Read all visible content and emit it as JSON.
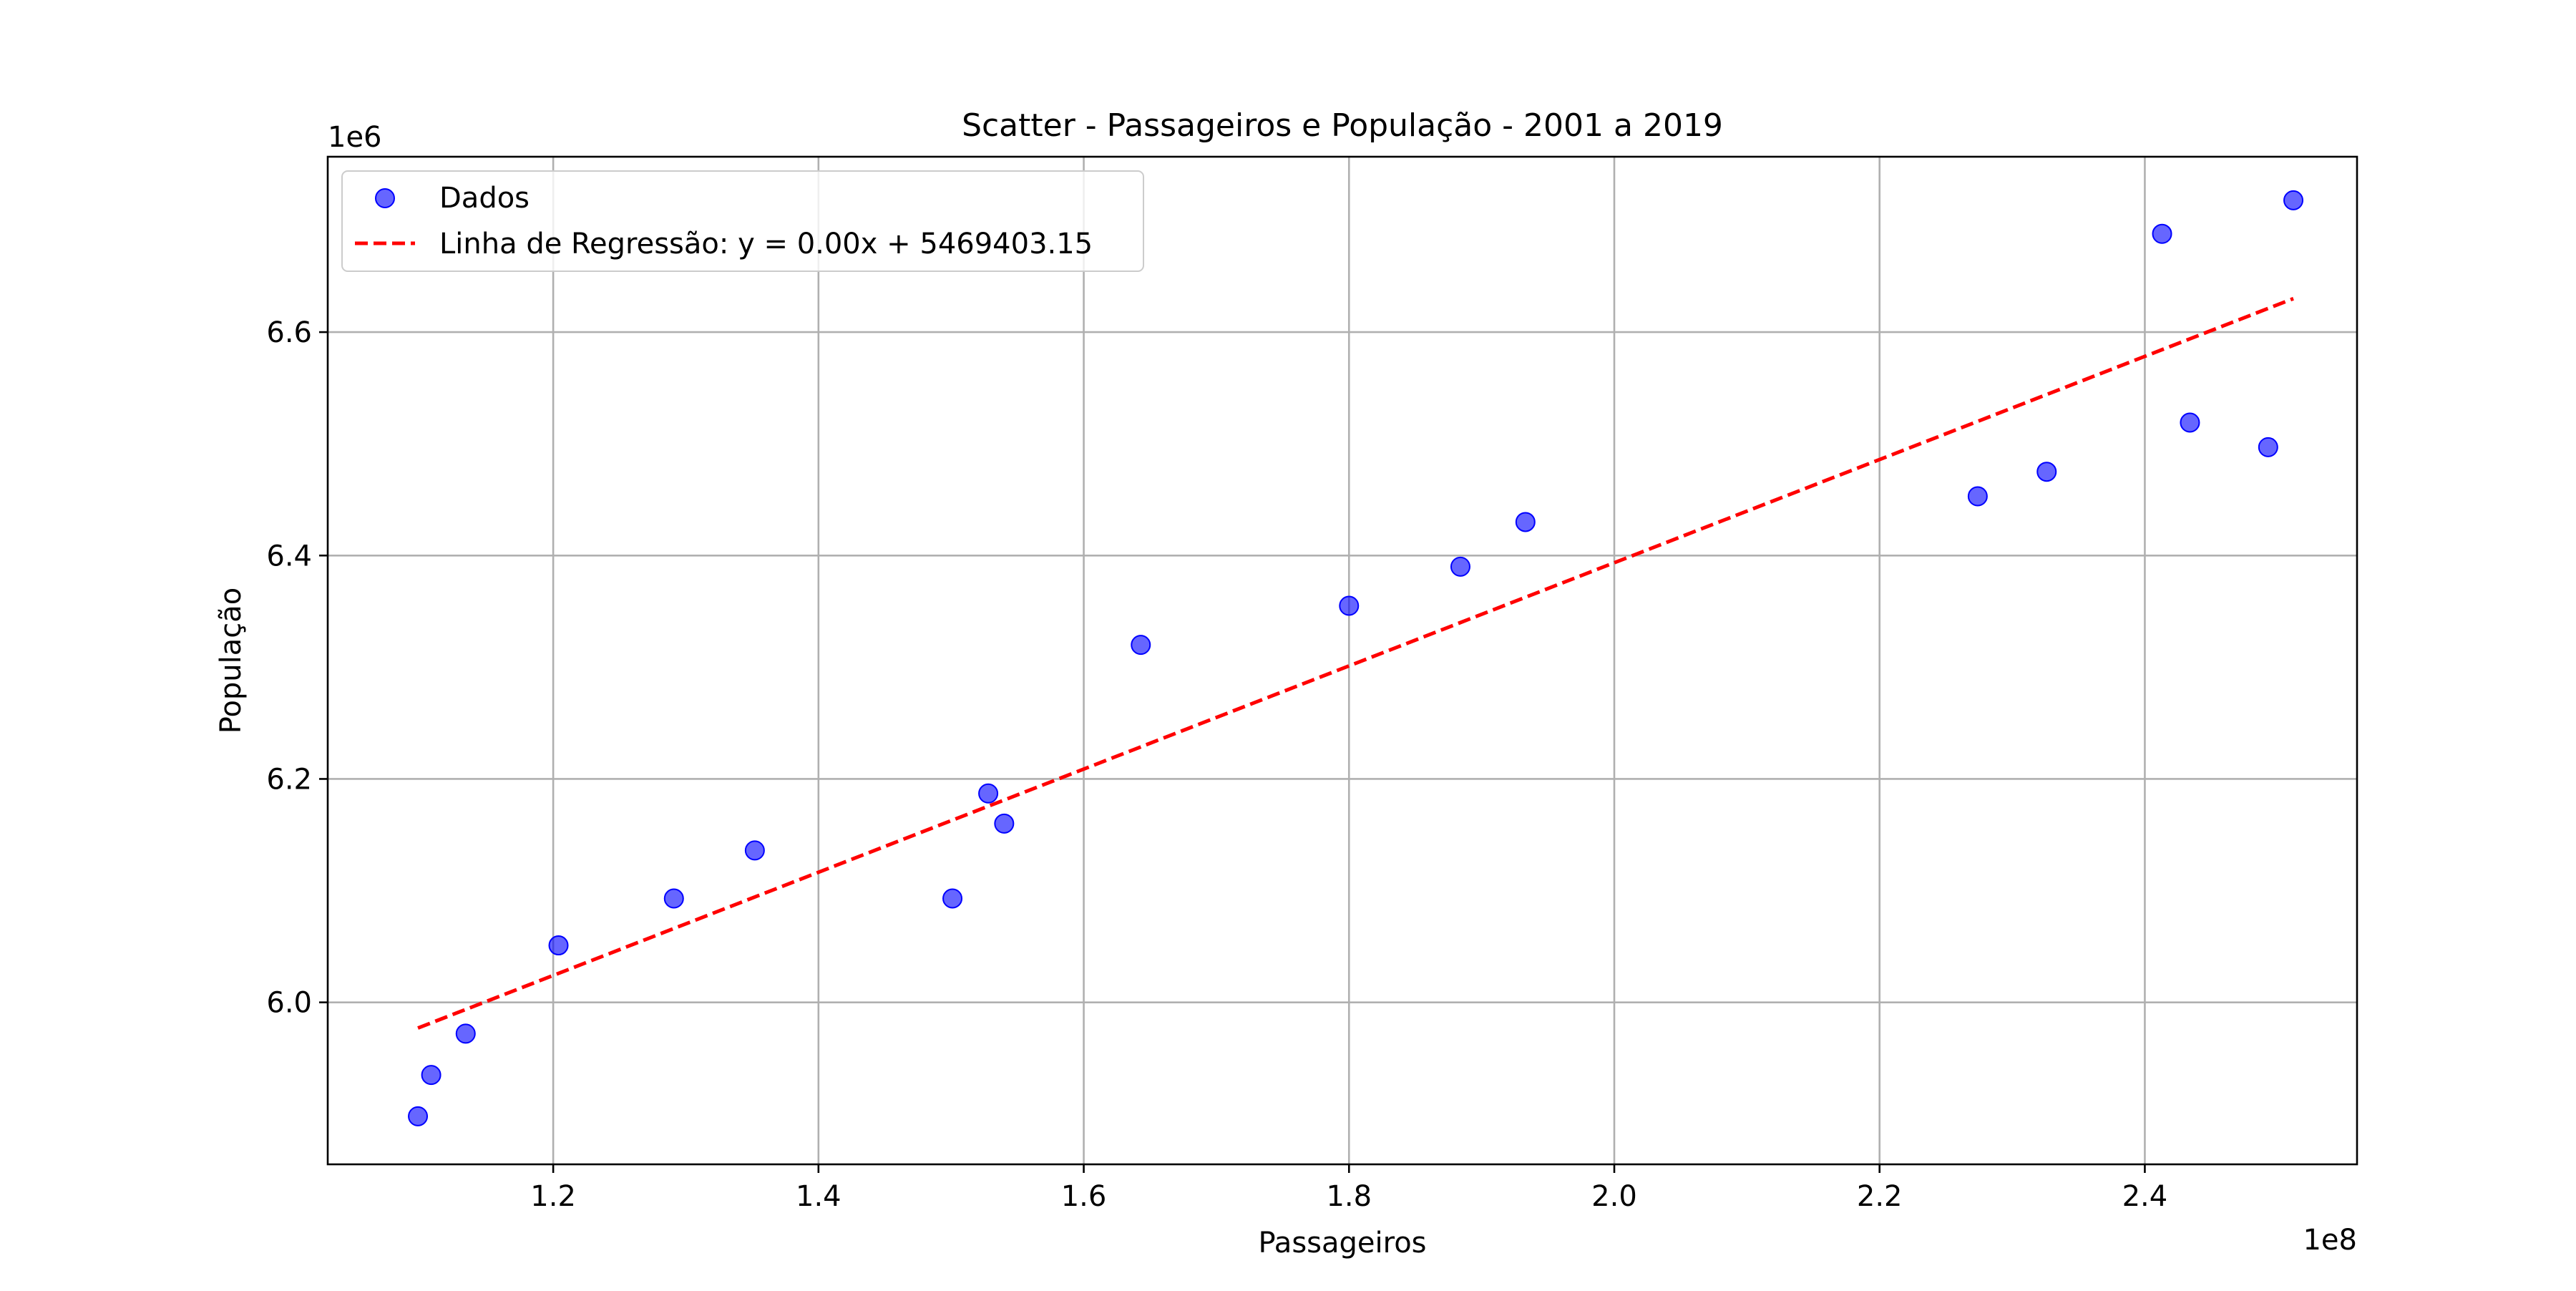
{
  "chart_data": {
    "type": "scatter",
    "title": "Scatter - Passageiros e População - 2001 a 2019",
    "xlabel": "Passageiros",
    "ylabel": "População",
    "x_offset_label": "1e8",
    "y_offset_label": "1e6",
    "xlim": [
      1.03,
      2.56
    ],
    "ylim": [
      5.855,
      6.757
    ],
    "x_ticks": [
      "1.2",
      "1.4",
      "1.6",
      "1.8",
      "2.0",
      "2.2",
      "2.4"
    ],
    "y_ticks": [
      "6.0",
      "6.2",
      "6.4",
      "6.6"
    ],
    "grid": true,
    "legend_placement": "upper-left",
    "legend": [
      "Dados",
      "Linha de Regressão: y = 0.00x + 5469403.15"
    ],
    "series": [
      {
        "name": "Dados",
        "kind": "scatter",
        "color": "#0000ff",
        "points": [
          [
            1.098,
            5.898
          ],
          [
            1.108,
            5.935
          ],
          [
            1.134,
            5.972
          ],
          [
            1.204,
            6.051
          ],
          [
            1.291,
            6.093
          ],
          [
            1.352,
            6.136
          ],
          [
            1.501,
            6.093
          ],
          [
            1.528,
            6.187
          ],
          [
            1.54,
            6.16
          ],
          [
            1.643,
            6.32
          ],
          [
            1.8,
            6.355
          ],
          [
            1.884,
            6.39
          ],
          [
            1.933,
            6.43
          ],
          [
            2.274,
            6.453
          ],
          [
            2.326,
            6.475
          ],
          [
            2.413,
            6.688
          ],
          [
            2.434,
            6.519
          ],
          [
            2.493,
            6.497
          ],
          [
            2.512,
            6.718
          ]
        ]
      },
      {
        "name": "Linha de Regressão: y = 0.00x + 5469403.15",
        "kind": "line",
        "color": "#ff0000",
        "dashed": true,
        "points": [
          [
            1.098,
            5.977
          ],
          [
            2.512,
            6.63
          ]
        ]
      }
    ]
  }
}
